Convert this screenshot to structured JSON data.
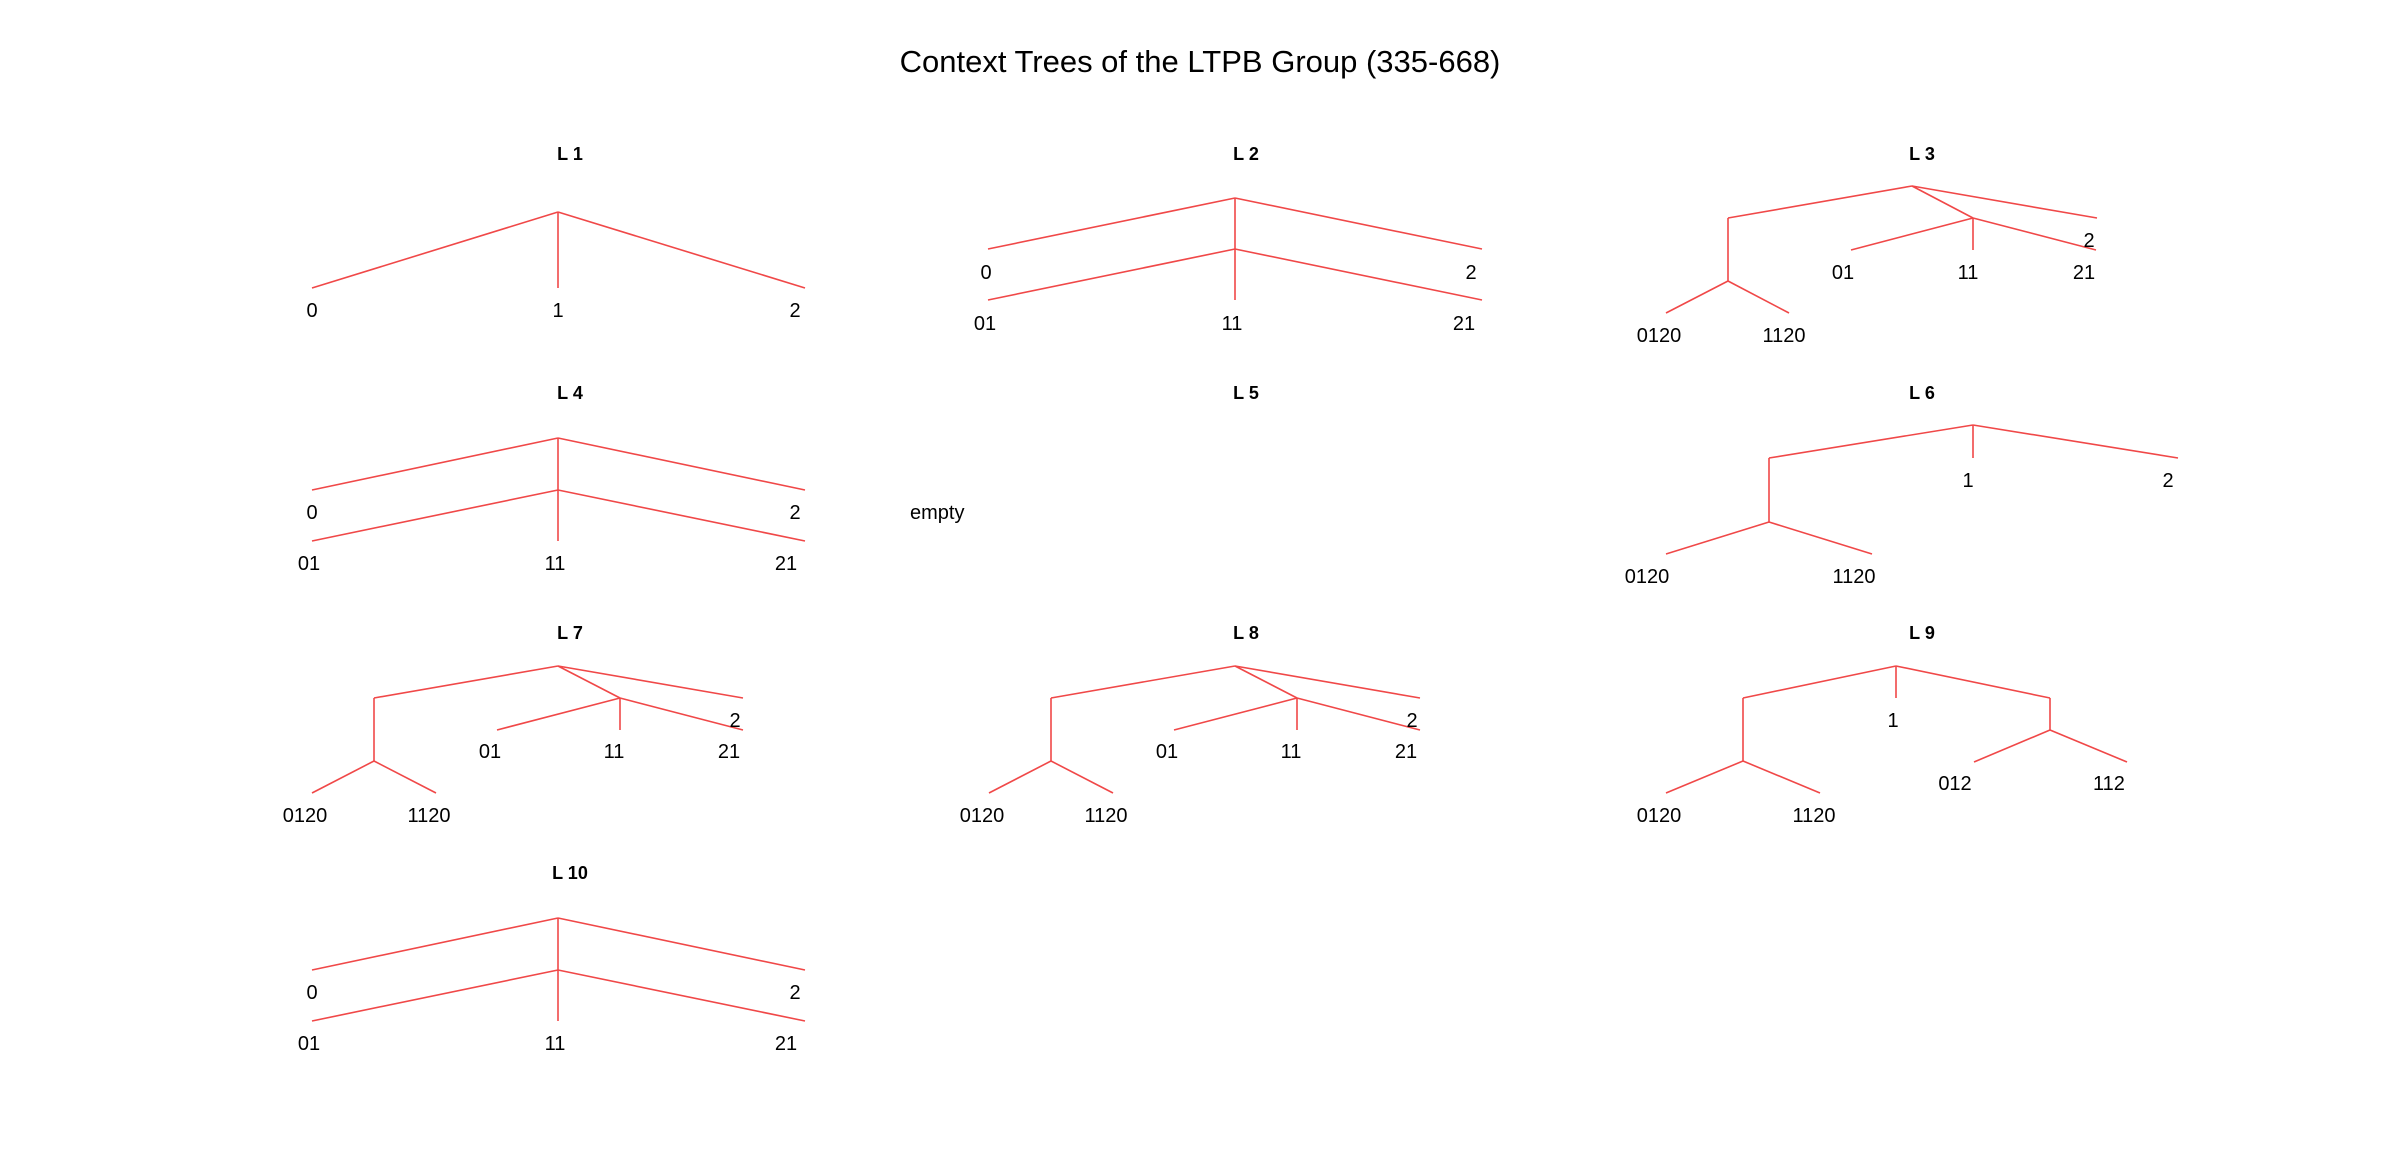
{
  "title": "Context Trees of the LTPB Group (335-668)",
  "edge_color": "#f04848",
  "panels": [
    {
      "title": "L 1",
      "labels": [
        "0",
        "1",
        "2"
      ]
    },
    {
      "title": "L 2",
      "labels": [
        "0",
        "2",
        "01",
        "11",
        "21"
      ]
    },
    {
      "title": "L 3",
      "labels": [
        "2",
        "01",
        "11",
        "21",
        "0120",
        "1120"
      ]
    },
    {
      "title": "L 4",
      "labels": [
        "0",
        "2",
        "01",
        "11",
        "21"
      ]
    },
    {
      "title": "L 5",
      "labels": [
        "empty"
      ]
    },
    {
      "title": "L 6",
      "labels": [
        "1",
        "2",
        "0120",
        "1120"
      ]
    },
    {
      "title": "L 7",
      "labels": [
        "2",
        "01",
        "11",
        "21",
        "0120",
        "1120"
      ]
    },
    {
      "title": "L 8",
      "labels": [
        "2",
        "01",
        "11",
        "21",
        "0120",
        "1120"
      ]
    },
    {
      "title": "L 9",
      "labels": [
        "1",
        "012",
        "112",
        "0120",
        "1120"
      ]
    },
    {
      "title": "L 10",
      "labels": [
        "0",
        "2",
        "01",
        "11",
        "21"
      ]
    }
  ]
}
